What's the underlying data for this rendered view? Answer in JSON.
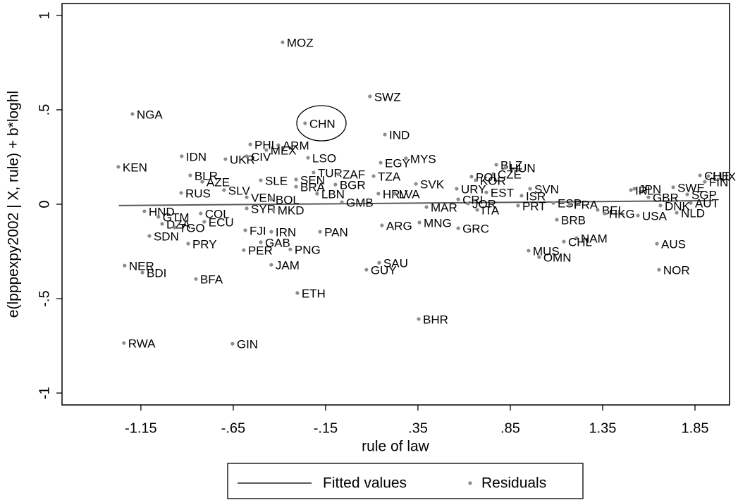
{
  "chart_data": {
    "type": "scatter",
    "xlabel": "rule of law",
    "ylabel": "e(lpppexpy2002 | X, rule) + b*loghl",
    "xlim": [
      -1.577,
      2.037
    ],
    "ylim": [
      -1.063,
      1.063
    ],
    "xticks": [
      -1.15,
      {
        "value": -0.65,
        "label": "-.65"
      },
      {
        "value": -0.15,
        "label": "-.15"
      },
      {
        "value": 0.35,
        "label": ".35"
      },
      {
        "value": 0.85,
        "label": ".85"
      },
      1.35,
      1.85
    ],
    "yticks": [
      -1,
      {
        "value": -0.5,
        "label": "-.5"
      },
      0,
      {
        "value": 0.5,
        "label": ".5"
      },
      1
    ],
    "series": [
      {
        "name": "Fitted values",
        "type": "line",
        "color": "#5a5a5a",
        "x": [
          -1.27,
          1.95
        ],
        "values": [
          -0.007,
          0.019
        ]
      },
      {
        "name": "Residuals",
        "type": "scatter",
        "color": "#8c8c8c",
        "labels": [
          "MOZ",
          "SWZ",
          "NGA",
          "CHN",
          "IND",
          "PHL",
          "ARM",
          "MEX",
          "IDN",
          "UKR",
          "CIV",
          "LSO",
          "MYS",
          "EGY",
          "KEN",
          "BLZ",
          "HUN",
          "BLR",
          "TUR",
          "ZAF",
          "TZA",
          "CZE",
          "POL",
          "AZE",
          "SLE",
          "SEN",
          "KOR",
          "SVK",
          "BGR",
          "JPN",
          "IRL",
          "LUX",
          "CHE",
          "FIN",
          "SWE",
          "SGP",
          "AUT",
          "GBR",
          "NLD",
          "DNK",
          "USA",
          "RUS",
          "SLV",
          "VEN",
          "BOL",
          "BRA",
          "LBN",
          "HRV",
          "LVA",
          "URY",
          "EST",
          "SVN",
          "ISR",
          "CRI",
          "JOR",
          "ITA",
          "MAR",
          "GMB",
          "PRT",
          "ESP",
          "FRA",
          "BEL",
          "HKG",
          "BRB",
          "NAM",
          "CHL",
          "AUS",
          "MUS",
          "OMN",
          "NOR",
          "HND",
          "COL",
          "SYR",
          "MKD",
          "GTM",
          "DZA",
          "ECU",
          "TGO",
          "SDN",
          "FJI",
          "IRN",
          "PAN",
          "ARG",
          "MNG",
          "GRC",
          "PRY",
          "GAB",
          "PER",
          "PNG",
          "JAM",
          "SAU",
          "GUY",
          "NER",
          "BDI",
          "BFA",
          "ETH",
          "BHR",
          "RWA",
          "GIN"
        ],
        "x": [
          -0.383,
          0.09,
          -1.196,
          -0.261,
          0.171,
          -0.558,
          -0.406,
          -0.471,
          -0.929,
          -0.692,
          -0.577,
          -0.245,
          0.285,
          0.148,
          -1.272,
          0.774,
          0.823,
          -0.883,
          -0.215,
          -0.081,
          0.11,
          0.758,
          0.64,
          -0.818,
          -0.501,
          -0.31,
          0.663,
          0.339,
          -0.097,
          1.522,
          1.503,
          1.922,
          1.877,
          1.903,
          1.732,
          1.808,
          1.827,
          1.598,
          1.751,
          1.663,
          1.541,
          -0.932,
          -0.7,
          -0.577,
          -0.444,
          -0.31,
          -0.196,
          0.136,
          0.224,
          0.56,
          0.72,
          0.957,
          0.911,
          0.568,
          0.621,
          0.671,
          0.396,
          -0.062,
          0.892,
          1.083,
          1.171,
          1.323,
          1.361,
          1.102,
          1.209,
          1.14,
          1.644,
          0.949,
          1.006,
          1.655,
          -1.131,
          -0.826,
          -0.577,
          -0.433,
          -1.055,
          -1.035,
          -0.807,
          -0.967,
          -1.104,
          -0.585,
          -0.444,
          -0.18,
          0.155,
          0.358,
          0.568,
          -0.894,
          -0.501,
          -0.593,
          -0.341,
          -0.444,
          0.14,
          0.071,
          -1.238,
          -1.142,
          -0.852,
          -0.303,
          0.354,
          -1.242,
          -0.654
        ],
        "values": [
          0.858,
          0.571,
          0.478,
          0.429,
          0.369,
          0.317,
          0.313,
          0.287,
          0.254,
          0.239,
          0.254,
          0.246,
          0.243,
          0.22,
          0.198,
          0.209,
          0.194,
          0.153,
          0.168,
          0.16,
          0.149,
          0.16,
          0.146,
          0.119,
          0.127,
          0.131,
          0.127,
          0.108,
          0.104,
          0.082,
          0.075,
          0.149,
          0.153,
          0.119,
          0.09,
          0.052,
          0.007,
          0.037,
          -0.045,
          -0.007,
          -0.06,
          0.06,
          0.075,
          0.037,
          0.026,
          0.093,
          0.056,
          0.056,
          0.056,
          0.082,
          0.063,
          0.082,
          0.045,
          0.026,
          0.004,
          -0.03,
          -0.015,
          0.011,
          -0.007,
          0.007,
          0,
          -0.03,
          -0.049,
          -0.082,
          -0.179,
          -0.198,
          -0.209,
          -0.246,
          -0.28,
          -0.347,
          -0.037,
          -0.049,
          -0.022,
          -0.03,
          -0.067,
          -0.104,
          -0.093,
          -0.123,
          -0.168,
          -0.138,
          -0.146,
          -0.146,
          -0.112,
          -0.097,
          -0.127,
          -0.209,
          -0.201,
          -0.243,
          -0.239,
          -0.321,
          -0.31,
          -0.347,
          -0.325,
          -0.362,
          -0.396,
          -0.47,
          -0.608,
          -0.735,
          -0.739
        ]
      }
    ]
  }
}
